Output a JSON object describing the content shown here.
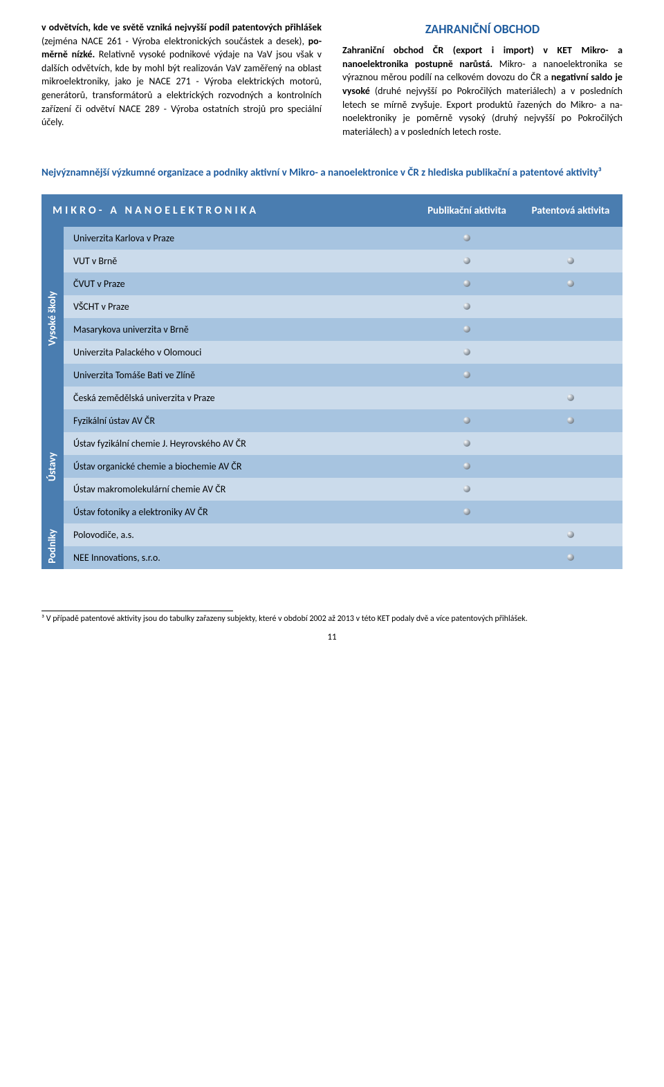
{
  "left_para": {
    "prefix_bold": "v odvětvích, kde ve světě vzniká nejvyšší podíl patentových přihlášek",
    "part1": " (zejména NACE 261 - Výroba elektronických součástek a desek), ",
    "part1_bold2": "po­měrně nízké.",
    "part2": " Relativně vysoké podnikové výdaje na VaV jsou však v dalších odvětvích, kde by mohl být realizován VaV zaměřený na oblast mikro­elektroniky, jako je NACE 271 - Výroba elektric­kých motorů, generátorů, transformátorů a elek­trických rozvodných a kontrolních zařízení či od­větví NACE 289 - Výroba ostatních strojů pro speciální účely."
  },
  "right": {
    "heading": "ZAHRANIČNÍ OBCHOD",
    "p1_bold": "Zahraniční obchod ČR (export i import) v KET Mikro- a nanoelektronika postupně narůstá.",
    "p2a": " Mikro- a nanoelektronika se výraznou měrou podílí na celkovém dovozu do ČR a ",
    "p2_bold": "negativní saldo je vysoké",
    "p2b": " (druhé nejvyšší po Pokročilých materiálech) a v posledních letech se mírně zvy­šuje. Export produktů řazených do Mikro- a na­noelektroniky je poměrně vysoký (druhý nejvyšší po Pokročilých materiálech) a v posledních letech roste."
  },
  "intro_heading": "Nejvýznamnější výzkumné organizace a podniky aktivní v Mikro- a nanoelektronice v ČR z hlediska publikační a patentové aktivity³",
  "table": {
    "main_header": "MIKRO- A NANOELEKTRONIKA",
    "col1": "Publikační aktivita",
    "col2": "Patentová aktivita",
    "groups": [
      {
        "label": "Vysoké školy",
        "rows": [
          {
            "name": "Univerzita Karlova v Praze",
            "pub": true,
            "pat": false
          },
          {
            "name": "VUT v Brně",
            "pub": true,
            "pat": true
          },
          {
            "name": "ČVUT v Praze",
            "pub": true,
            "pat": true
          },
          {
            "name": "VŠCHT v Praze",
            "pub": true,
            "pat": false
          },
          {
            "name": "Masarykova univerzita v Brně",
            "pub": true,
            "pat": false
          },
          {
            "name": "Univerzita Palackého v Olomouci",
            "pub": true,
            "pat": false
          },
          {
            "name": "Univerzita Tomáše Bati ve Zlíně",
            "pub": true,
            "pat": false
          },
          {
            "name": "Česká zemědělská univerzita v Praze",
            "pub": false,
            "pat": true
          }
        ]
      },
      {
        "label": "Ústavy",
        "rows": [
          {
            "name": "Fyzikální ústav AV ČR",
            "pub": true,
            "pat": true
          },
          {
            "name": "Ústav fyzikální chemie J. Heyrovského AV ČR",
            "pub": true,
            "pat": false
          },
          {
            "name": "Ústav organické chemie a biochemie AV ČR",
            "pub": true,
            "pat": false
          },
          {
            "name": "Ústav makromolekulární chemie AV ČR",
            "pub": true,
            "pat": false
          },
          {
            "name": "Ústav fotoniky a elektroniky AV ČR",
            "pub": true,
            "pat": false
          }
        ]
      },
      {
        "label": "Podniky",
        "rows": [
          {
            "name": "Polovodiče, a.s.",
            "pub": false,
            "pat": true
          },
          {
            "name": "NEE Innovations, s.r.o.",
            "pub": false,
            "pat": true
          }
        ]
      }
    ],
    "colors": {
      "header_bg": "#4a7db0",
      "row_a": "#a7c4e0",
      "row_b": "#cbdbeb",
      "header_fg": "#ffffff"
    }
  },
  "footnote": "³ V případě patentové aktivity jsou do tabulky zařazeny subjekty, které v období 2002 až 2013 v této KET podaly dvě a více patentových přihlášek.",
  "pagenum": "11"
}
